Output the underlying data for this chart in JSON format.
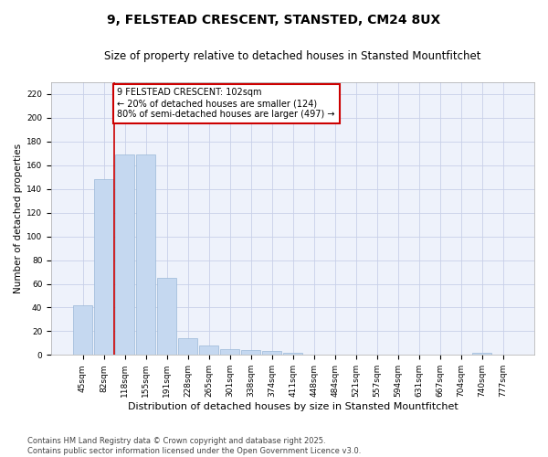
{
  "title": "9, FELSTEAD CRESCENT, STANSTED, CM24 8UX",
  "subtitle": "Size of property relative to detached houses in Stansted Mountfitchet",
  "xlabel": "Distribution of detached houses by size in Stansted Mountfitchet",
  "ylabel": "Number of detached properties",
  "categories": [
    "45sqm",
    "82sqm",
    "118sqm",
    "155sqm",
    "191sqm",
    "228sqm",
    "265sqm",
    "301sqm",
    "338sqm",
    "374sqm",
    "411sqm",
    "448sqm",
    "484sqm",
    "521sqm",
    "557sqm",
    "594sqm",
    "631sqm",
    "667sqm",
    "704sqm",
    "740sqm",
    "777sqm"
  ],
  "values": [
    42,
    148,
    169,
    169,
    65,
    14,
    8,
    5,
    4,
    3,
    2,
    0,
    0,
    0,
    0,
    0,
    0,
    0,
    0,
    2,
    0
  ],
  "bar_color": "#c5d8f0",
  "bar_edge_color": "#9ab8d8",
  "vline_x": 1.5,
  "vline_color": "#cc0000",
  "annotation_text": "9 FELSTEAD CRESCENT: 102sqm\n← 20% of detached houses are smaller (124)\n80% of semi-detached houses are larger (497) →",
  "annotation_box_facecolor": "#ffffff",
  "annotation_box_edgecolor": "#cc0000",
  "ylim": [
    0,
    230
  ],
  "yticks": [
    0,
    20,
    40,
    60,
    80,
    100,
    120,
    140,
    160,
    180,
    200,
    220
  ],
  "footer": "Contains HM Land Registry data © Crown copyright and database right 2025.\nContains public sector information licensed under the Open Government Licence v3.0.",
  "background_color": "#ffffff",
  "plot_bg_color": "#eef2fb",
  "grid_color": "#c8d0e8",
  "title_fontsize": 10,
  "subtitle_fontsize": 8.5,
  "xlabel_fontsize": 8,
  "ylabel_fontsize": 7.5,
  "tick_fontsize": 6.5,
  "annot_fontsize": 7,
  "footer_fontsize": 6
}
